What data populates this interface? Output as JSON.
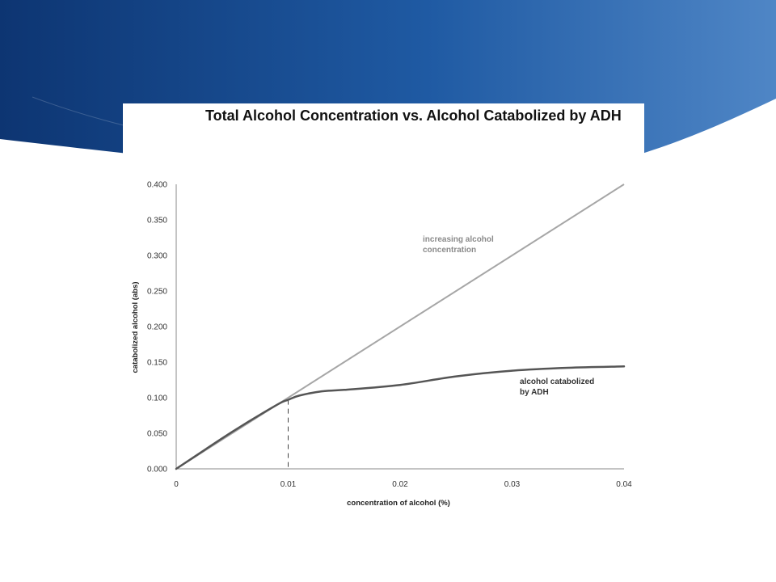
{
  "theme": {
    "banner_dark": "#0d3572",
    "banner_mid": "#1f5aa3",
    "banner_light": "#4f86c6",
    "line_linear": "#a6a6a6",
    "line_adh": "#555555"
  },
  "chart_data": {
    "type": "line",
    "title": "Total Alcohol Concentration vs. Alcohol Catabolized by ADH",
    "xlabel": "concentration of alcohol (%)",
    "ylabel": "catabolized alcohol (abs)",
    "xlim": [
      0,
      0.04
    ],
    "ylim": [
      0,
      0.4
    ],
    "x_ticks": [
      "0",
      "0.01",
      "0.02",
      "0.03",
      "0.04"
    ],
    "y_ticks": [
      "0.000",
      "0.050",
      "0.100",
      "0.150",
      "0.200",
      "0.250",
      "0.300",
      "0.350",
      "0.400"
    ],
    "grid": false,
    "series": [
      {
        "name": "increasing alcohol concentration",
        "x": [
          0,
          0.04
        ],
        "y": [
          0,
          0.4
        ]
      },
      {
        "name": "alcohol catabolized by ADH",
        "x": [
          0,
          0.005,
          0.009,
          0.01,
          0.011,
          0.013,
          0.015,
          0.02,
          0.025,
          0.03,
          0.035,
          0.04
        ],
        "y": [
          0,
          0.052,
          0.09,
          0.097,
          0.103,
          0.109,
          0.111,
          0.118,
          0.13,
          0.138,
          0.142,
          0.144
        ]
      }
    ],
    "annotations": [
      {
        "text_lines": [
          "increasing alcohol",
          "concentration"
        ]
      },
      {
        "text_lines": [
          "alcohol catabolized",
          "by ADH"
        ]
      }
    ],
    "reference_line": {
      "x": 0.01,
      "style": "dashed"
    }
  }
}
